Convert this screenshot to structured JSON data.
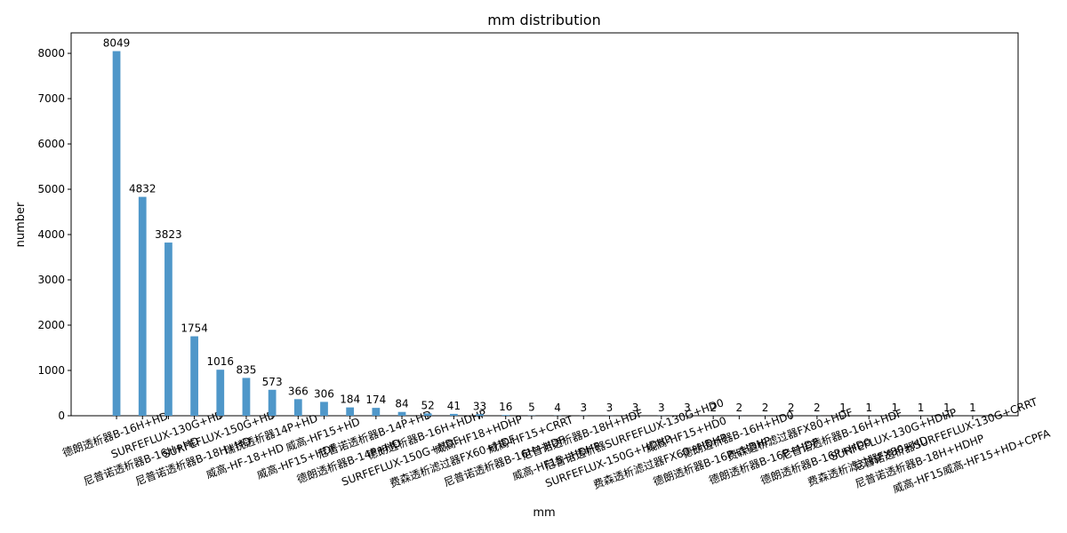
{
  "chart_data": {
    "type": "bar",
    "title": "mm distribution",
    "x_label": "mm",
    "y_label": "number",
    "categories": [
      "德朗透析器B-16H+HD",
      "尼普诺透析器B-16H+HD",
      "SURFEFLUX-130G+HD",
      "尼普诺透析器B-18H+HD",
      "SURFEFLUX-150G+HD",
      "威高-HF-18+HD",
      "瑞锐透析器14P+HD",
      "威高-HF15+HDF",
      "威高-HF15+HD",
      "德朗透析器B-14P+HD",
      "尼普诺透析器B-14P+HD",
      "SURFEFLUX-150G+HDF",
      "德朗透析器B-16H+HDHP",
      "费森透析滤过器FX60+HDF",
      "威高-HF18+HDHP",
      "尼普诺透析器B-16H+HDF",
      "威高-HF15+CRRT",
      "威高-HF15+HDHP",
      "尼普诺透析器B-18H+HDF",
      "SURFEFLUX-150G+HDHP",
      "尼普诺透析器SURFEFLUX-130G+HD0",
      "费森透析滤过器FX60+HDHP",
      "威高-HF15+HD0",
      "德朗透析器B-16P+HDHP",
      "德朗透析器B-16H+HD0",
      "德朗透析器B-16P+HDF",
      "费森透析滤过器FX80+HDF",
      "德朗透析器B-16P+HD0",
      "尼普诺透析器B-16H+HDF",
      "费森透析滤过器FX80+HD",
      "SURFEFLUX-130G+HDHP",
      "尼普诺透析器B-18H+HDHP",
      "尼普诺透析器SURFEFLUX-130G+CRRT",
      "威高-HF15威高-HF15+HD+CPFA"
    ],
    "values": [
      8049,
      4832,
      3823,
      1754,
      1016,
      835,
      573,
      366,
      306,
      184,
      174,
      84,
      52,
      41,
      33,
      16,
      5,
      4,
      3,
      3,
      3,
      3,
      3,
      2,
      2,
      2,
      2,
      2,
      1,
      1,
      1,
      1,
      1,
      1
    ],
    "color": "#4f97c9",
    "ylim": [
      0,
      8452
    ],
    "yticks": [
      0,
      1000,
      2000,
      3000,
      4000,
      5000,
      6000,
      7000,
      8000
    ],
    "xlim": [
      -1.75,
      34.75
    ]
  }
}
